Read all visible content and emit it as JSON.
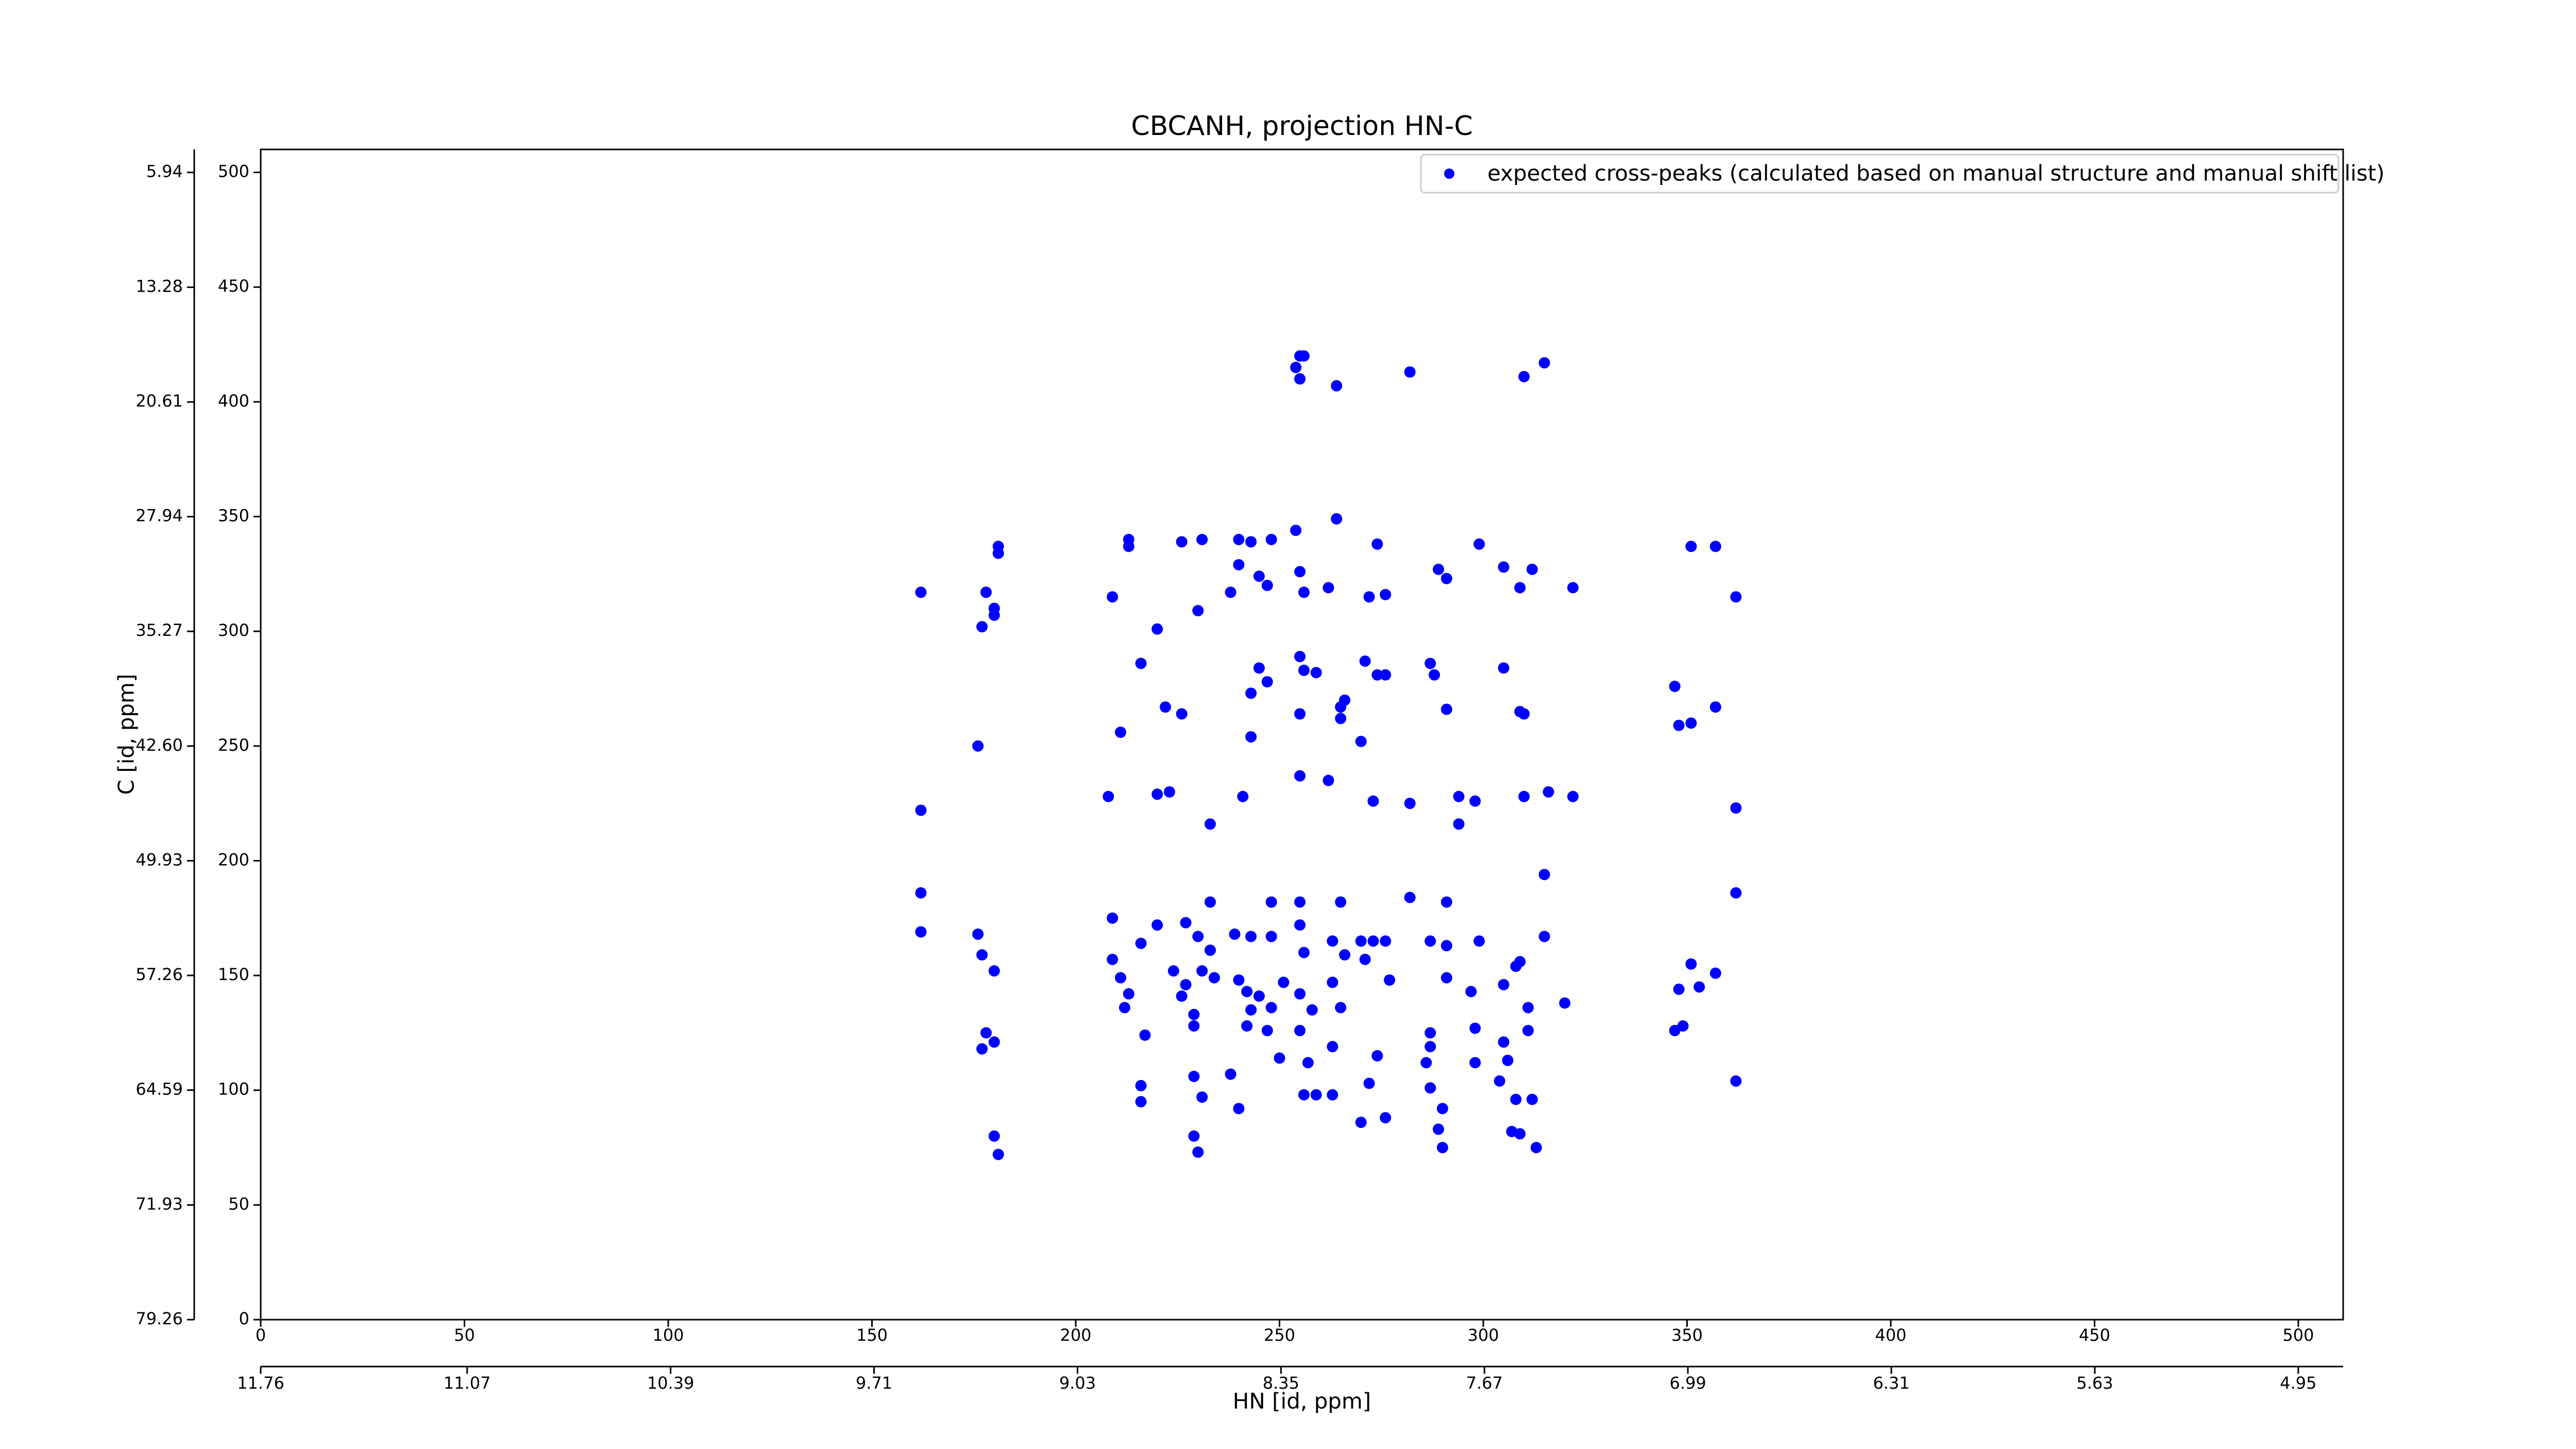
{
  "chart_data": {
    "type": "scatter",
    "title": "CBCANH, projection HN-C",
    "xlabel": "HN [id, ppm]",
    "ylabel": "C [id, ppm]",
    "xlim": [
      0,
      511
    ],
    "ylim": [
      0,
      510
    ],
    "xticks": [
      0,
      50,
      100,
      150,
      200,
      250,
      300,
      350,
      400,
      450,
      500
    ],
    "yticks": [
      0,
      50,
      100,
      150,
      200,
      250,
      300,
      350,
      400,
      450,
      500
    ],
    "x2lim": [
      11.76,
      4.8
    ],
    "x2ticks": [
      11.76,
      11.07,
      10.39,
      9.71,
      9.03,
      8.35,
      7.67,
      6.99,
      6.31,
      5.63,
      4.95
    ],
    "y2lim": [
      79.26,
      4.47
    ],
    "y2ticks": [
      79.26,
      71.93,
      64.59,
      57.26,
      49.93,
      {
        "value": 42.6,
        "label": "42.60"
      },
      35.27,
      27.94,
      20.61,
      13.28,
      5.94
    ],
    "grid": false,
    "legend": "upper right",
    "series": [
      {
        "name": "expected cross-peaks (calculated based on manual structure and manual shift list)",
        "color": "#0000ff",
        "x": [
          255,
          256,
          254,
          255,
          264,
          282,
          310,
          315,
          213,
          213,
          226,
          231,
          240,
          243,
          248,
          254,
          264,
          274,
          289,
          299,
          305,
          312,
          322,
          351,
          357,
          362,
          181,
          181,
          162,
          178,
          180,
          177,
          180,
          209,
          220,
          230,
          238,
          240,
          245,
          247,
          255,
          256,
          262,
          272,
          276,
          291,
          309,
          216,
          222,
          226,
          245,
          247,
          243,
          255,
          256,
          259,
          255,
          265,
          265,
          266,
          271,
          274,
          276,
          287,
          288,
          291,
          305,
          309,
          310,
          347,
          357,
          348,
          351,
          176,
          211,
          243,
          270,
          162,
          208,
          220,
          223,
          233,
          241,
          255,
          262,
          273,
          282,
          298,
          294,
          310,
          316,
          322,
          362,
          294,
          162,
          162,
          209,
          233,
          248,
          255,
          265,
          282,
          291,
          315,
          362,
          176,
          177,
          180,
          209,
          216,
          220,
          227,
          230,
          233,
          239,
          243,
          248,
          255,
          256,
          263,
          266,
          270,
          273,
          276,
          271,
          287,
          291,
          299,
          308,
          309,
          315,
          351,
          357,
          211,
          213,
          212,
          224,
          227,
          226,
          229,
          231,
          234,
          240,
          242,
          243,
          245,
          248,
          251,
          255,
          258,
          263,
          265,
          277,
          291,
          297,
          305,
          311,
          320,
          348,
          353,
          347,
          349,
          178,
          180,
          177,
          217,
          229,
          242,
          247,
          250,
          255,
          257,
          263,
          274,
          287,
          287,
          298,
          305,
          306,
          298,
          286,
          311,
          216,
          216,
          229,
          231,
          238,
          240,
          256,
          259,
          263,
          272,
          287,
          290,
          304,
          308,
          312,
          362,
          289,
          276,
          229,
          230,
          180,
          181,
          270,
          307,
          309,
          313,
          290
        ],
        "values": [
          420,
          420,
          415,
          410,
          407,
          413,
          411,
          417,
          340,
          337,
          339,
          340,
          340,
          339,
          340,
          344,
          349,
          338,
          327,
          338,
          328,
          327,
          319,
          337,
          337,
          315,
          337,
          334,
          317,
          317,
          310,
          302,
          307,
          315,
          301,
          309,
          317,
          329,
          324,
          320,
          326,
          317,
          319,
          315,
          316,
          323,
          319,
          286,
          267,
          264,
          284,
          278,
          273,
          289,
          283,
          282,
          264,
          267,
          262,
          270,
          287,
          281,
          281,
          286,
          281,
          266,
          284,
          265,
          264,
          276,
          267,
          259,
          260,
          250,
          256,
          254,
          252,
          222,
          228,
          229,
          230,
          216,
          228,
          237,
          235,
          226,
          225,
          226,
          228,
          228,
          230,
          228,
          223,
          216,
          186,
          169,
          175,
          182,
          182,
          182,
          182,
          184,
          182,
          194,
          186,
          168,
          159,
          152,
          157,
          164,
          172,
          173,
          167,
          161,
          168,
          167,
          167,
          172,
          160,
          165,
          159,
          165,
          165,
          165,
          157,
          165,
          163,
          165,
          154,
          156,
          167,
          155,
          151,
          149,
          142,
          136,
          152,
          146,
          141,
          133,
          152,
          149,
          148,
          143,
          135,
          141,
          136,
          147,
          142,
          135,
          147,
          136,
          148,
          149,
          143,
          146,
          136,
          138,
          144,
          145,
          126,
          128,
          125,
          121,
          118,
          124,
          128,
          128,
          126,
          114,
          126,
          112,
          119,
          115,
          119,
          125,
          127,
          121,
          113,
          112,
          112,
          126,
          102,
          95,
          106,
          97,
          107,
          92,
          98,
          98,
          98,
          103,
          101,
          92,
          104,
          96,
          96,
          104,
          83,
          88,
          80,
          73,
          80,
          72,
          86,
          82,
          81,
          75,
          75
        ]
      }
    ]
  }
}
